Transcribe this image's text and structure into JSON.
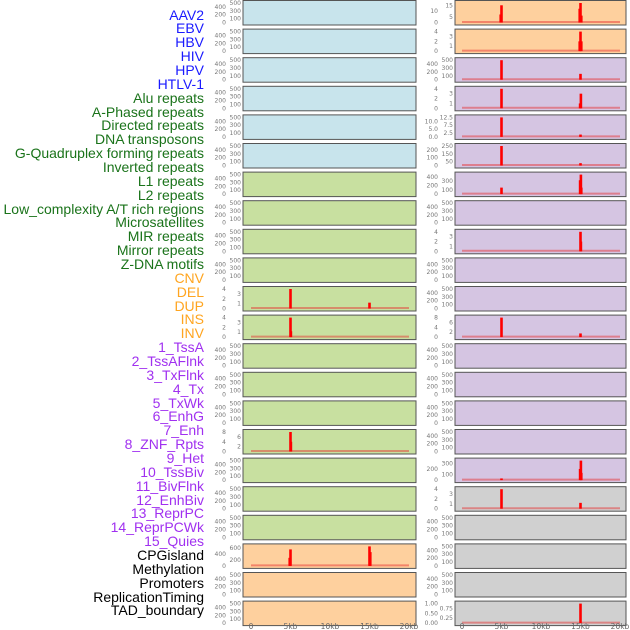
{
  "chart_data": {
    "type": "bar",
    "title": "",
    "xlabel": "",
    "ylabel": "",
    "x_ticks": [
      "0",
      "5kb",
      "10kb",
      "15kb",
      "20kb"
    ],
    "x_tick_values": [
      0,
      5,
      10,
      15,
      20
    ],
    "xlim_kb": [
      0,
      20
    ],
    "grid": false,
    "category_colors": {
      "virus": {
        "label": "#1a1aff",
        "panel": "#c8e4ec"
      },
      "repeat": {
        "label": "#1a731a",
        "panel": "#c8e0a0"
      },
      "sv": {
        "label": "#ffa520",
        "panel": "#fed09e"
      },
      "chromhmm": {
        "label": "#a030f0",
        "panel": "#d5c5e2"
      },
      "other": {
        "label": "#000000",
        "panel": "#d0d0d0"
      }
    },
    "labels": [
      {
        "text": "AAV2",
        "cat": "virus"
      },
      {
        "text": "EBV",
        "cat": "virus"
      },
      {
        "text": "HBV",
        "cat": "virus"
      },
      {
        "text": "HIV",
        "cat": "virus"
      },
      {
        "text": "HPV",
        "cat": "virus"
      },
      {
        "text": "HTLV-1",
        "cat": "virus"
      },
      {
        "text": "Alu repeats",
        "cat": "repeat"
      },
      {
        "text": "A-Phased repeats",
        "cat": "repeat"
      },
      {
        "text": "Directed repeats",
        "cat": "repeat"
      },
      {
        "text": "DNA transposons",
        "cat": "repeat"
      },
      {
        "text": "G-Quadruplex forming repeats",
        "cat": "repeat"
      },
      {
        "text": "Inverted repeats",
        "cat": "repeat"
      },
      {
        "text": "L1 repeats",
        "cat": "repeat"
      },
      {
        "text": "L2 repeats",
        "cat": "repeat"
      },
      {
        "text": "Low_complexity A/T rich regions",
        "cat": "repeat"
      },
      {
        "text": "Microsatellites",
        "cat": "repeat"
      },
      {
        "text": "MIR repeats",
        "cat": "repeat"
      },
      {
        "text": "Mirror repeats",
        "cat": "repeat"
      },
      {
        "text": "Z-DNA motifs",
        "cat": "repeat"
      },
      {
        "text": "CNV",
        "cat": "sv"
      },
      {
        "text": "DEL",
        "cat": "sv"
      },
      {
        "text": "DUP",
        "cat": "sv"
      },
      {
        "text": "INS",
        "cat": "sv"
      },
      {
        "text": "INV",
        "cat": "sv"
      },
      {
        "text": "1_TssA",
        "cat": "chromhmm"
      },
      {
        "text": "2_TssAFlnk",
        "cat": "chromhmm"
      },
      {
        "text": "3_TxFlnk",
        "cat": "chromhmm"
      },
      {
        "text": "4_Tx",
        "cat": "chromhmm"
      },
      {
        "text": "5_TxWk",
        "cat": "chromhmm"
      },
      {
        "text": "6_EnhG",
        "cat": "chromhmm"
      },
      {
        "text": "7_Enh",
        "cat": "chromhmm"
      },
      {
        "text": "8_ZNF_Rpts",
        "cat": "chromhmm"
      },
      {
        "text": "9_Het",
        "cat": "chromhmm"
      },
      {
        "text": "10_TssBiv",
        "cat": "chromhmm"
      },
      {
        "text": "11_BivFlnk",
        "cat": "chromhmm"
      },
      {
        "text": "12_EnhBiv",
        "cat": "chromhmm"
      },
      {
        "text": "13_ReprPC",
        "cat": "chromhmm"
      },
      {
        "text": "14_ReprPCWk",
        "cat": "chromhmm"
      },
      {
        "text": "15_Quies",
        "cat": "chromhmm"
      },
      {
        "text": "CPGisland",
        "cat": "other"
      },
      {
        "text": "Methylation",
        "cat": "other"
      },
      {
        "text": "Promoters",
        "cat": "other"
      },
      {
        "text": "ReplicationTiming",
        "cat": "other"
      },
      {
        "text": "TAD_boundary",
        "cat": "other"
      }
    ],
    "default_ticks": [
      "0",
      "100",
      "200",
      "300",
      "400",
      "500"
    ],
    "panels": {
      "G-Quadruplex forming repeats": {
        "ticks": [
          "0",
          "1",
          "2",
          "3",
          "4"
        ],
        "spikes": [
          {
            "x": 5,
            "y": 4
          },
          {
            "x": 15,
            "y": 1.2
          }
        ]
      },
      "Inverted repeats": {
        "ticks": [
          "0",
          "1",
          "2",
          "3",
          "4"
        ],
        "spikes": [
          {
            "x": 5,
            "y": 4
          },
          {
            "x": 5.05,
            "y": 1.2
          }
        ]
      },
      "Microsatellites": {
        "ticks": [
          "0",
          "2",
          "4",
          "6",
          "8"
        ],
        "spikes": [
          {
            "x": 5,
            "y": 8
          },
          {
            "x": 5.05,
            "y": 4
          }
        ]
      },
      "CNV": {
        "ticks": [
          "0",
          "200",
          "400",
          "600"
        ],
        "spikes": [
          {
            "x": 4.9,
            "y": 270
          },
          {
            "x": 5,
            "y": 550
          },
          {
            "x": 15,
            "y": 650
          },
          {
            "x": 15.1,
            "y": 460
          }
        ]
      },
      "INS": {
        "ticks": [
          "0",
          "5",
          "10",
          "15"
        ],
        "spikes": [
          {
            "x": 4.9,
            "y": 7
          },
          {
            "x": 5,
            "y": 15
          },
          {
            "x": 15,
            "y": 17
          },
          {
            "x": 14.9,
            "y": 12
          },
          {
            "x": 15.1,
            "y": 6
          }
        ]
      },
      "INV": {
        "ticks": [
          "0",
          "1",
          "2",
          "3",
          "4"
        ],
        "spikes": [
          {
            "x": 15,
            "y": 4
          },
          {
            "x": 14.9,
            "y": 2
          },
          {
            "x": 15.1,
            "y": 2
          }
        ]
      },
      "1_TssA": {
        "ticks": [
          "0",
          "100",
          "200",
          "300",
          "400",
          "500"
        ],
        "spikes": [
          {
            "x": 5,
            "y": 500
          },
          {
            "x": 15,
            "y": 150
          }
        ]
      },
      "2_TssAFlnk": {
        "ticks": [
          "0",
          "1",
          "2",
          "3",
          "4"
        ],
        "spikes": [
          {
            "x": 5,
            "y": 4
          },
          {
            "x": 15.05,
            "y": 3
          },
          {
            "x": 14.95,
            "y": 1
          }
        ]
      },
      "3_TxFlnk": {
        "ticks": [
          "0.0",
          "2.5",
          "5.0",
          "7.5",
          "10.0",
          "12.5"
        ],
        "spikes": [
          {
            "x": 5,
            "y": 12.5
          },
          {
            "x": 15,
            "y": 1.5
          }
        ]
      },
      "4_Tx": {
        "ticks": [
          "0",
          "50",
          "100",
          "150",
          "200",
          "250"
        ],
        "spikes": [
          {
            "x": 5,
            "y": 250
          },
          {
            "x": 15,
            "y": 30
          }
        ]
      },
      "5_TxWk": {
        "ticks": [
          "0",
          "100",
          "200",
          "300",
          "400"
        ],
        "spikes": [
          {
            "x": 5,
            "y": 150
          },
          {
            "x": 15.05,
            "y": 450
          },
          {
            "x": 14.95,
            "y": 320
          },
          {
            "x": 15.1,
            "y": 150
          }
        ]
      },
      "7_Enh": {
        "ticks": [
          "0",
          "1",
          "2",
          "3",
          "4"
        ],
        "spikes": [
          {
            "x": 15,
            "y": 4
          },
          {
            "x": 15.05,
            "y": 2
          }
        ]
      },
      "10_TssBiv": {
        "ticks": [
          "0",
          "2",
          "4",
          "6",
          "8"
        ],
        "spikes": [
          {
            "x": 5,
            "y": 8
          },
          {
            "x": 15,
            "y": 1.5
          }
        ]
      },
      "15_Quies": {
        "ticks": [
          "0",
          "100",
          "200",
          "300"
        ],
        "spikes": [
          {
            "x": 5,
            "y": 30
          },
          {
            "x": 15.05,
            "y": 350
          },
          {
            "x": 14.95,
            "y": 200
          },
          {
            "x": 15.1,
            "y": 130
          }
        ]
      },
      "CPGisland": {
        "ticks": [
          "0",
          "1",
          "2",
          "3",
          "4"
        ],
        "spikes": [
          {
            "x": 5,
            "y": 4
          },
          {
            "x": 15,
            "y": 1.2
          }
        ]
      },
      "TAD_boundary": {
        "ticks": [
          "0.00",
          "0.25",
          "0.50",
          "0.75",
          "1.00"
        ],
        "spikes": [
          {
            "x": 15,
            "y": 1.0
          }
        ]
      }
    },
    "spike_color": "#ff0000"
  }
}
